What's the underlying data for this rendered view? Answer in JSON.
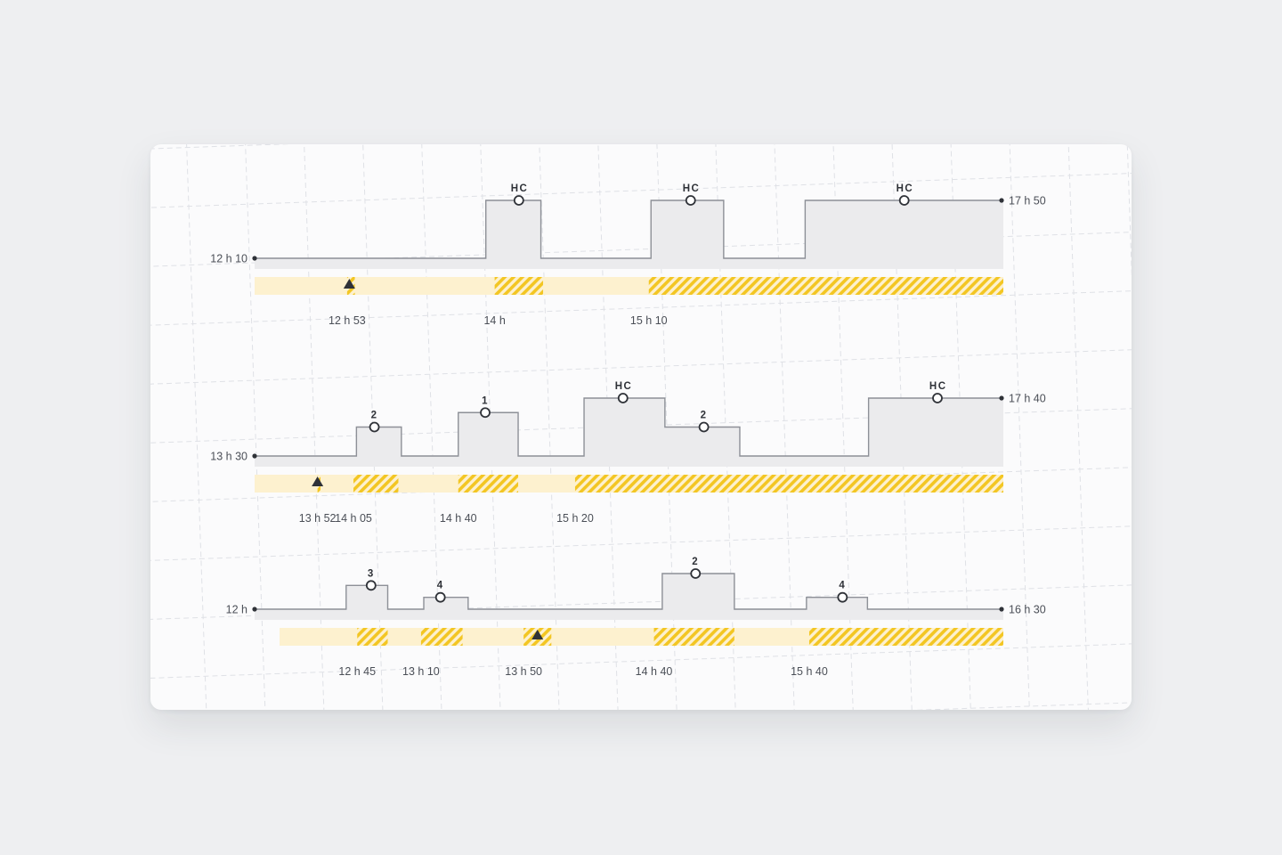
{
  "colors": {
    "step_line": "#8d9097",
    "step_fill": "#ebebed",
    "bar_light": "#fdf1cf",
    "bar_hatch": "#f3c623",
    "marker": "#2f3238",
    "grid": "#dfe1e6"
  },
  "timelines": [
    {
      "start_label": "12 h 10",
      "end_label": "17 h 50",
      "x_start": 0,
      "x_end": 340,
      "segments": [
        {
          "x0": 0,
          "x1": 105,
          "level": 0
        },
        {
          "x0": 105,
          "x1": 130,
          "level": 1
        },
        {
          "x0": 130,
          "x1": 180,
          "level": 0
        },
        {
          "x0": 180,
          "x1": 213,
          "level": 1
        },
        {
          "x0": 213,
          "x1": 250,
          "level": 0
        },
        {
          "x0": 250,
          "x1": 340,
          "level": 1
        }
      ],
      "max_level": 1,
      "point_markers": [
        {
          "x": 120,
          "level": 1,
          "label": "HC"
        },
        {
          "x": 198,
          "level": 1,
          "label": "HC"
        },
        {
          "x": 295,
          "level": 1,
          "label": "HC"
        }
      ],
      "bar_start": 0,
      "hatched": [
        {
          "x0": 42,
          "x1": 45.5
        },
        {
          "x0": 109,
          "x1": 131
        },
        {
          "x0": 179,
          "x1": 340
        }
      ],
      "triangle_x": 43,
      "ticks": [
        {
          "x": 42,
          "label": "12 h 53"
        },
        {
          "x": 109,
          "label": "14 h"
        },
        {
          "x": 179,
          "label": "15 h 10"
        }
      ]
    },
    {
      "start_label": "13 h 30",
      "end_label": "17 h 40",
      "x_start": 0,
      "x_end": 250,
      "segments": [
        {
          "x0": 0,
          "x1": 34,
          "level": 0
        },
        {
          "x0": 34,
          "x1": 49,
          "level": 2
        },
        {
          "x0": 49,
          "x1": 68,
          "level": 0
        },
        {
          "x0": 68,
          "x1": 88,
          "level": 3
        },
        {
          "x0": 88,
          "x1": 110,
          "level": 0
        },
        {
          "x0": 110,
          "x1": 137,
          "level": 4
        },
        {
          "x0": 137,
          "x1": 162,
          "level": 2
        },
        {
          "x0": 162,
          "x1": 205,
          "level": 0
        },
        {
          "x0": 205,
          "x1": 250,
          "level": 4
        }
      ],
      "max_level": 4,
      "point_markers": [
        {
          "x": 40,
          "level": 2,
          "label": "2"
        },
        {
          "x": 77,
          "level": 3,
          "label": "1"
        },
        {
          "x": 123,
          "level": 4,
          "label": "HC"
        },
        {
          "x": 150,
          "level": 2,
          "label": "2"
        },
        {
          "x": 228,
          "level": 4,
          "label": "HC"
        }
      ],
      "bar_start": 0,
      "hatched": [
        {
          "x0": 21,
          "x1": 22
        },
        {
          "x0": 33,
          "x1": 48
        },
        {
          "x0": 68,
          "x1": 88
        },
        {
          "x0": 107,
          "x1": 250
        }
      ],
      "triangle_x": 21,
      "ticks": [
        {
          "x": 21,
          "label": "13 h 52"
        },
        {
          "x": 33,
          "label": "14 h 05"
        },
        {
          "x": 68,
          "label": "14 h 40"
        },
        {
          "x": 107,
          "label": "15 h 20"
        }
      ]
    },
    {
      "start_label": "12 h",
      "end_label": "16 h 30",
      "x_start": 0,
      "x_end": 270,
      "segments": [
        {
          "x0": 0,
          "x1": 33,
          "level": 0
        },
        {
          "x0": 33,
          "x1": 48,
          "level": 2
        },
        {
          "x0": 48,
          "x1": 61,
          "level": 0
        },
        {
          "x0": 61,
          "x1": 77,
          "level": 1
        },
        {
          "x0": 77,
          "x1": 147,
          "level": 0
        },
        {
          "x0": 147,
          "x1": 173,
          "level": 3
        },
        {
          "x0": 173,
          "x1": 199,
          "level": 0
        },
        {
          "x0": 199,
          "x1": 221,
          "level": 1
        },
        {
          "x0": 221,
          "x1": 270,
          "level": 0
        }
      ],
      "max_level": 3,
      "point_markers": [
        {
          "x": 42,
          "level": 2,
          "label": "3"
        },
        {
          "x": 67,
          "level": 1,
          "label": "4"
        },
        {
          "x": 159,
          "level": 3,
          "label": "2"
        },
        {
          "x": 212,
          "level": 1,
          "label": "4"
        }
      ],
      "bar_start": 9,
      "hatched": [
        {
          "x0": 37,
          "x1": 48
        },
        {
          "x0": 60,
          "x1": 75
        },
        {
          "x0": 97,
          "x1": 107
        },
        {
          "x0": 144,
          "x1": 173
        },
        {
          "x0": 200,
          "x1": 270
        }
      ],
      "triangle_x": 102,
      "ticks": [
        {
          "x": 37,
          "label": "12 h 45"
        },
        {
          "x": 60,
          "label": "13 h 10"
        },
        {
          "x": 97,
          "label": "13 h 50"
        },
        {
          "x": 144,
          "label": "14 h 40"
        },
        {
          "x": 200,
          "label": "15 h 40"
        }
      ]
    }
  ]
}
